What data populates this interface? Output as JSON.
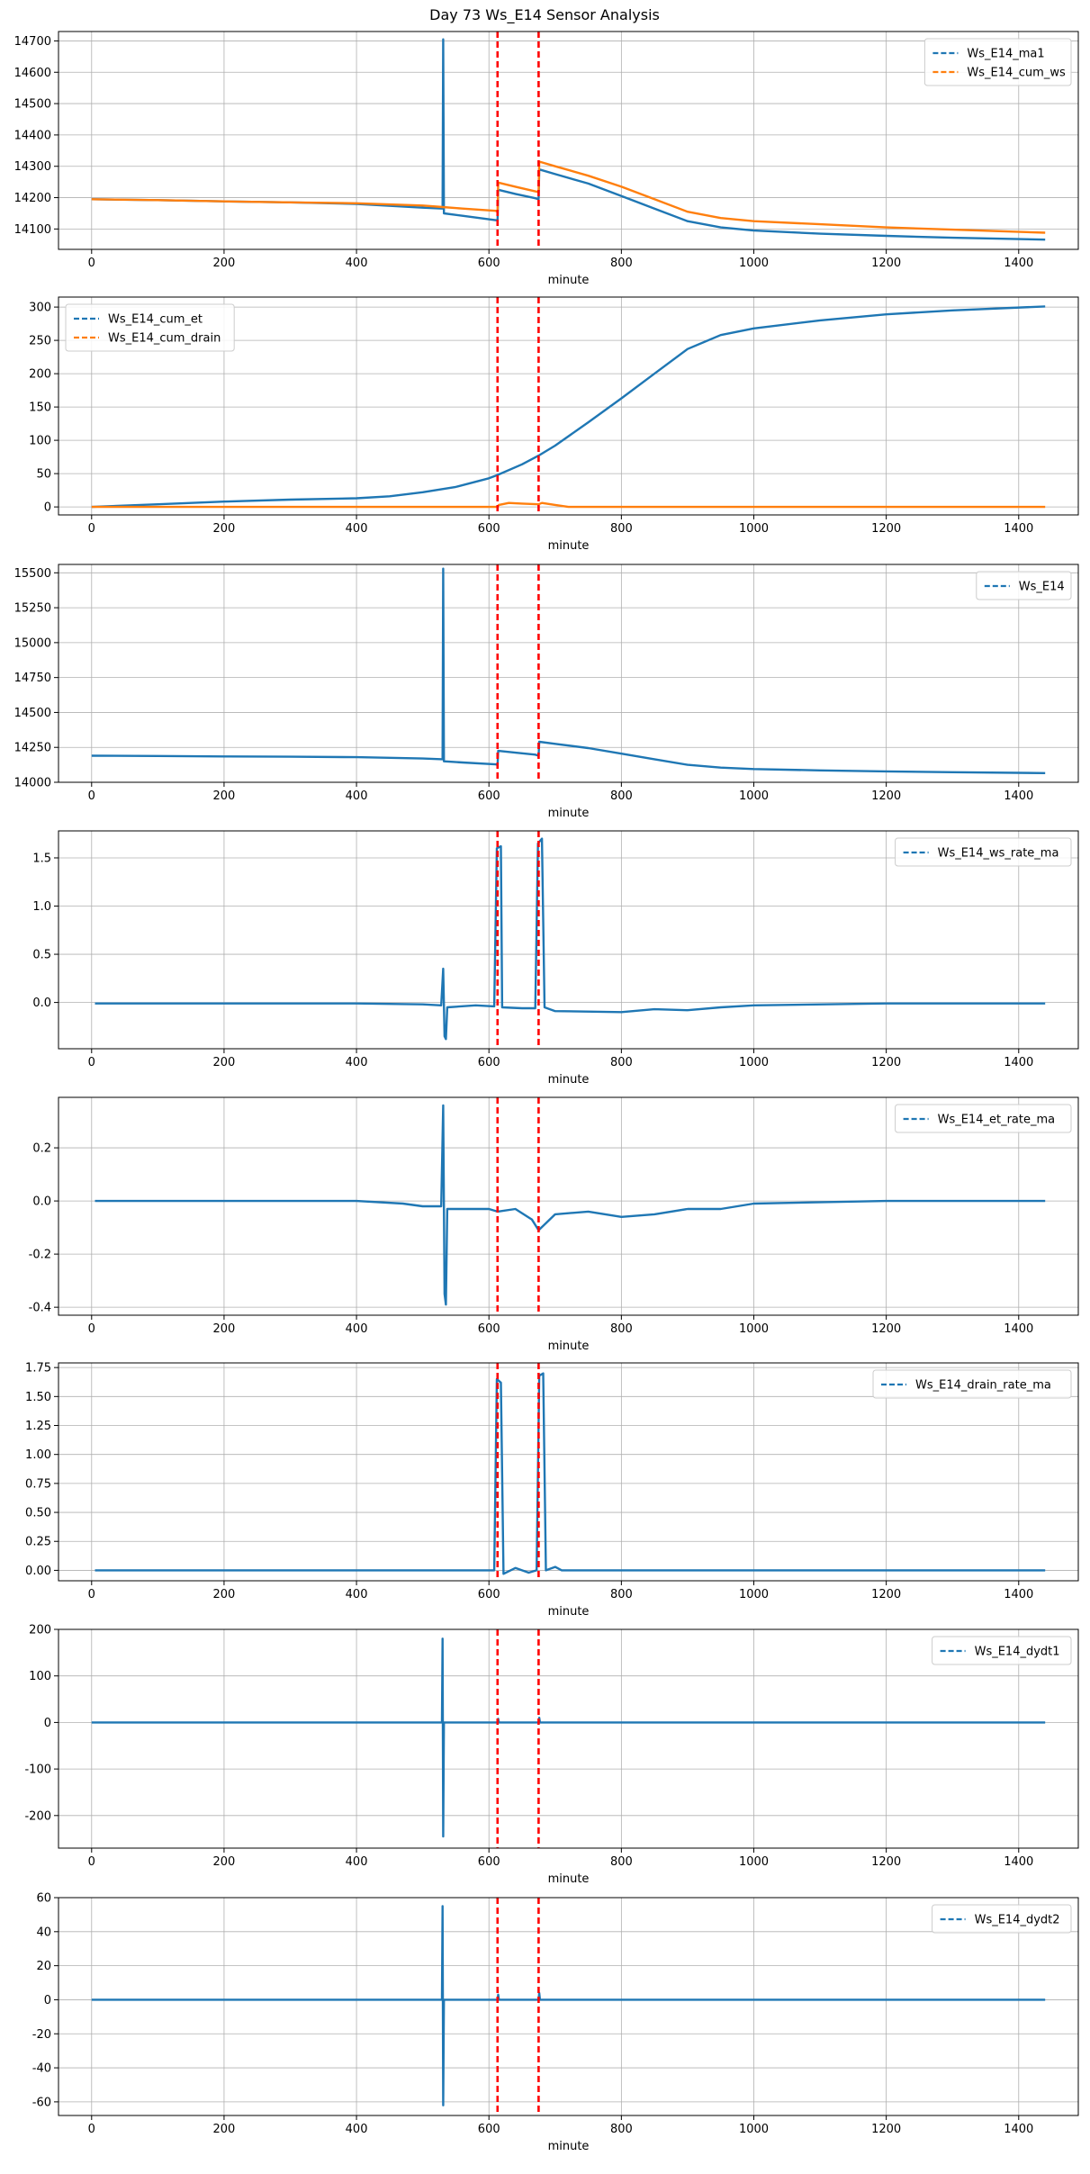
{
  "title": "Day 73 Ws_E14 Sensor Analysis",
  "colors": {
    "c0": "#1f77b4",
    "c1": "#ff7f0e",
    "event": "#ff0000",
    "grid": "#b0b0b0"
  },
  "chart_data": [
    {
      "type": "line",
      "xlabel": "minute",
      "xlim": [
        -50,
        1490
      ],
      "xticks": [
        0,
        200,
        400,
        600,
        800,
        1000,
        1200,
        1400
      ],
      "ylim": [
        14035,
        14730
      ],
      "yticks": [
        14100,
        14200,
        14300,
        14400,
        14500,
        14600,
        14700
      ],
      "legend_position": "top-right",
      "event_lines": [
        613,
        675
      ],
      "series": [
        {
          "name": "Ws_E14_ma1",
          "color_key": "c0",
          "points": [
            [
              0,
              14195
            ],
            [
              100,
              14192
            ],
            [
              200,
              14188
            ],
            [
              300,
              14185
            ],
            [
              400,
              14180
            ],
            [
              500,
              14168
            ],
            [
              530,
              14165
            ],
            [
              531,
              14705
            ],
            [
              532,
              14150
            ],
            [
              560,
              14142
            ],
            [
              610,
              14128
            ],
            [
              613,
              14128
            ],
            [
              614,
              14225
            ],
            [
              640,
              14212
            ],
            [
              670,
              14198
            ],
            [
              675,
              14195
            ],
            [
              676,
              14290
            ],
            [
              700,
              14275
            ],
            [
              750,
              14245
            ],
            [
              800,
              14205
            ],
            [
              850,
              14165
            ],
            [
              900,
              14125
            ],
            [
              950,
              14105
            ],
            [
              1000,
              14095
            ],
            [
              1100,
              14085
            ],
            [
              1200,
              14078
            ],
            [
              1300,
              14072
            ],
            [
              1440,
              14066
            ]
          ]
        },
        {
          "name": "Ws_E14_cum_ws",
          "color_key": "c1",
          "points": [
            [
              0,
              14195
            ],
            [
              100,
              14192
            ],
            [
              200,
              14188
            ],
            [
              300,
              14185
            ],
            [
              400,
              14182
            ],
            [
              500,
              14175
            ],
            [
              530,
              14170
            ],
            [
              560,
              14165
            ],
            [
              610,
              14158
            ],
            [
              613,
              14155
            ],
            [
              614,
              14248
            ],
            [
              640,
              14235
            ],
            [
              670,
              14220
            ],
            [
              675,
              14218
            ],
            [
              676,
              14315
            ],
            [
              700,
              14300
            ],
            [
              750,
              14270
            ],
            [
              800,
              14235
            ],
            [
              850,
              14195
            ],
            [
              900,
              14155
            ],
            [
              950,
              14135
            ],
            [
              1000,
              14125
            ],
            [
              1100,
              14115
            ],
            [
              1200,
              14105
            ],
            [
              1300,
              14098
            ],
            [
              1440,
              14088
            ]
          ]
        }
      ]
    },
    {
      "type": "line",
      "xlabel": "minute",
      "xlim": [
        -50,
        1490
      ],
      "xticks": [
        0,
        200,
        400,
        600,
        800,
        1000,
        1200,
        1400
      ],
      "ylim": [
        -12,
        315
      ],
      "yticks": [
        0,
        50,
        100,
        150,
        200,
        250,
        300
      ],
      "legend_position": "top-left",
      "event_lines": [
        613,
        675
      ],
      "series": [
        {
          "name": "Ws_E14_cum_et",
          "color_key": "c0",
          "points": [
            [
              0,
              0
            ],
            [
              100,
              4
            ],
            [
              200,
              8
            ],
            [
              300,
              11
            ],
            [
              400,
              13
            ],
            [
              450,
              16
            ],
            [
              500,
              22
            ],
            [
              550,
              30
            ],
            [
              600,
              43
            ],
            [
              613,
              48
            ],
            [
              650,
              64
            ],
            [
              675,
              77
            ],
            [
              700,
              92
            ],
            [
              750,
              127
            ],
            [
              800,
              163
            ],
            [
              850,
              200
            ],
            [
              900,
              237
            ],
            [
              950,
              258
            ],
            [
              1000,
              268
            ],
            [
              1100,
              280
            ],
            [
              1200,
              289
            ],
            [
              1300,
              295
            ],
            [
              1440,
              301
            ]
          ]
        },
        {
          "name": "Ws_E14_cum_drain",
          "color_key": "c1",
          "points": [
            [
              0,
              0
            ],
            [
              600,
              0
            ],
            [
              613,
              0
            ],
            [
              615,
              3
            ],
            [
              630,
              6
            ],
            [
              650,
              5
            ],
            [
              675,
              4
            ],
            [
              680,
              6
            ],
            [
              700,
              3
            ],
            [
              720,
              0
            ],
            [
              1440,
              0
            ]
          ]
        }
      ]
    },
    {
      "type": "line",
      "xlabel": "minute",
      "xlim": [
        -50,
        1490
      ],
      "xticks": [
        0,
        200,
        400,
        600,
        800,
        1000,
        1200,
        1400
      ],
      "ylim": [
        14000,
        15560
      ],
      "yticks": [
        14000,
        14250,
        14500,
        14750,
        15000,
        15250,
        15500
      ],
      "legend_position": "top-right",
      "event_lines": [
        613,
        675
      ],
      "series": [
        {
          "name": "Ws_E14",
          "color_key": "c0",
          "points": [
            [
              0,
              14190
            ],
            [
              100,
              14188
            ],
            [
              200,
              14185
            ],
            [
              300,
              14183
            ],
            [
              400,
              14180
            ],
            [
              500,
              14170
            ],
            [
              530,
              14165
            ],
            [
              531,
              15530
            ],
            [
              532,
              14150
            ],
            [
              560,
              14142
            ],
            [
              610,
              14128
            ],
            [
              613,
              14125
            ],
            [
              614,
              14225
            ],
            [
              640,
              14212
            ],
            [
              670,
              14198
            ],
            [
              675,
              14190
            ],
            [
              676,
              14290
            ],
            [
              700,
              14275
            ],
            [
              750,
              14245
            ],
            [
              800,
              14205
            ],
            [
              850,
              14165
            ],
            [
              900,
              14125
            ],
            [
              950,
              14105
            ],
            [
              1000,
              14095
            ],
            [
              1100,
              14085
            ],
            [
              1200,
              14078
            ],
            [
              1300,
              14072
            ],
            [
              1440,
              14066
            ]
          ]
        }
      ]
    },
    {
      "type": "line",
      "xlabel": "minute",
      "xlim": [
        -50,
        1490
      ],
      "xticks": [
        0,
        200,
        400,
        600,
        800,
        1000,
        1200,
        1400
      ],
      "ylim": [
        -0.48,
        1.78
      ],
      "yticks": [
        0.0,
        0.5,
        1.0,
        1.5
      ],
      "legend_position": "top-right",
      "event_lines": [
        613,
        675
      ],
      "series": [
        {
          "name": "Ws_E14_ws_rate_ma",
          "color_key": "c0",
          "points": [
            [
              5,
              -0.01
            ],
            [
              100,
              -0.01
            ],
            [
              200,
              -0.01
            ],
            [
              300,
              -0.01
            ],
            [
              400,
              -0.01
            ],
            [
              500,
              -0.02
            ],
            [
              528,
              -0.03
            ],
            [
              531,
              0.35
            ],
            [
              533,
              -0.35
            ],
            [
              535,
              -0.38
            ],
            [
              537,
              -0.05
            ],
            [
              580,
              -0.03
            ],
            [
              608,
              -0.04
            ],
            [
              612,
              1.6
            ],
            [
              618,
              1.62
            ],
            [
              620,
              -0.05
            ],
            [
              650,
              -0.06
            ],
            [
              670,
              -0.06
            ],
            [
              674,
              1.65
            ],
            [
              680,
              1.7
            ],
            [
              684,
              -0.05
            ],
            [
              700,
              -0.09
            ],
            [
              800,
              -0.1
            ],
            [
              850,
              -0.07
            ],
            [
              900,
              -0.08
            ],
            [
              950,
              -0.05
            ],
            [
              1000,
              -0.03
            ],
            [
              1200,
              -0.01
            ],
            [
              1440,
              -0.01
            ]
          ]
        }
      ]
    },
    {
      "type": "line",
      "xlabel": "minute",
      "xlim": [
        -50,
        1490
      ],
      "xticks": [
        0,
        200,
        400,
        600,
        800,
        1000,
        1200,
        1400
      ],
      "ylim": [
        -0.43,
        0.39
      ],
      "yticks": [
        -0.4,
        -0.2,
        0.0,
        0.2
      ],
      "legend_position": "top-right",
      "event_lines": [
        613,
        675
      ],
      "series": [
        {
          "name": "Ws_E14_et_rate_ma",
          "color_key": "c0",
          "points": [
            [
              5,
              0.0
            ],
            [
              100,
              0.0
            ],
            [
              200,
              0.0
            ],
            [
              300,
              0.0
            ],
            [
              400,
              0.0
            ],
            [
              470,
              -0.01
            ],
            [
              500,
              -0.02
            ],
            [
              528,
              -0.02
            ],
            [
              531,
              0.36
            ],
            [
              533,
              -0.35
            ],
            [
              535,
              -0.39
            ],
            [
              537,
              -0.03
            ],
            [
              600,
              -0.03
            ],
            [
              613,
              -0.04
            ],
            [
              640,
              -0.03
            ],
            [
              665,
              -0.07
            ],
            [
              675,
              -0.11
            ],
            [
              700,
              -0.05
            ],
            [
              750,
              -0.04
            ],
            [
              800,
              -0.06
            ],
            [
              850,
              -0.05
            ],
            [
              900,
              -0.03
            ],
            [
              950,
              -0.03
            ],
            [
              1000,
              -0.01
            ],
            [
              1200,
              0.0
            ],
            [
              1440,
              0.0
            ]
          ]
        }
      ]
    },
    {
      "type": "line",
      "xlabel": "minute",
      "xlim": [
        -50,
        1490
      ],
      "xticks": [
        0,
        200,
        400,
        600,
        800,
        1000,
        1200,
        1400
      ],
      "ylim": [
        -0.09,
        1.79
      ],
      "yticks": [
        0.0,
        0.25,
        0.5,
        0.75,
        1.0,
        1.25,
        1.5,
        1.75
      ],
      "legend_position": "top-right",
      "event_lines": [
        613,
        675
      ],
      "series": [
        {
          "name": "Ws_E14_drain_rate_ma",
          "color_key": "c0",
          "points": [
            [
              5,
              0.0
            ],
            [
              600,
              0.0
            ],
            [
              608,
              0.0
            ],
            [
              612,
              1.65
            ],
            [
              618,
              1.62
            ],
            [
              622,
              -0.03
            ],
            [
              640,
              0.02
            ],
            [
              660,
              -0.02
            ],
            [
              672,
              0.0
            ],
            [
              676,
              1.68
            ],
            [
              682,
              1.7
            ],
            [
              686,
              0.0
            ],
            [
              700,
              0.03
            ],
            [
              710,
              0.0
            ],
            [
              1440,
              0.0
            ]
          ]
        }
      ]
    },
    {
      "type": "line",
      "xlabel": "minute",
      "xlim": [
        -50,
        1490
      ],
      "xticks": [
        0,
        200,
        400,
        600,
        800,
        1000,
        1200,
        1400
      ],
      "ylim": [
        -270,
        200
      ],
      "yticks": [
        -200,
        -100,
        0,
        100,
        200
      ],
      "legend_position": "top-right",
      "event_lines": [
        613,
        675
      ],
      "series": [
        {
          "name": "Ws_E14_dydt1",
          "color_key": "c0",
          "points": [
            [
              0,
              0
            ],
            [
              529,
              0
            ],
            [
              530,
              180
            ],
            [
              531,
              -245
            ],
            [
              532,
              0
            ],
            [
              613,
              0
            ],
            [
              614,
              8
            ],
            [
              615,
              0
            ],
            [
              675,
              0
            ],
            [
              676,
              10
            ],
            [
              677,
              0
            ],
            [
              1440,
              0
            ]
          ]
        }
      ]
    },
    {
      "type": "line",
      "xlabel": "minute",
      "xlim": [
        -50,
        1490
      ],
      "xticks": [
        0,
        200,
        400,
        600,
        800,
        1000,
        1200,
        1400
      ],
      "ylim": [
        -68,
        60
      ],
      "yticks": [
        -60,
        -40,
        -20,
        0,
        20,
        40,
        60
      ],
      "legend_position": "top-right",
      "event_lines": [
        613,
        675
      ],
      "series": [
        {
          "name": "Ws_E14_dydt2",
          "color_key": "c0",
          "points": [
            [
              0,
              0
            ],
            [
              529,
              0
            ],
            [
              530,
              55
            ],
            [
              531,
              -62
            ],
            [
              532,
              0
            ],
            [
              613,
              0
            ],
            [
              614,
              3
            ],
            [
              615,
              0
            ],
            [
              675,
              0
            ],
            [
              676,
              4
            ],
            [
              677,
              0
            ],
            [
              1440,
              0
            ]
          ]
        }
      ]
    }
  ]
}
